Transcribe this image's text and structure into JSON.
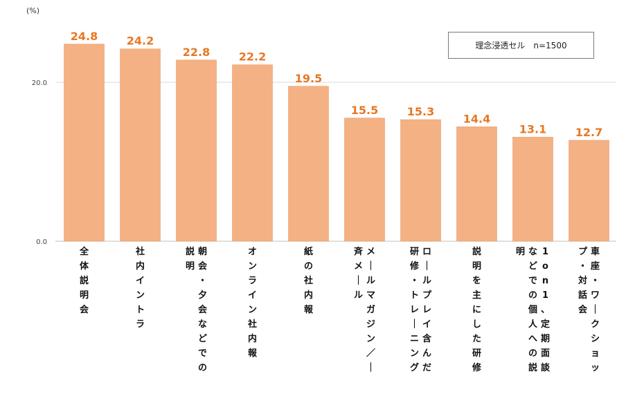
{
  "chart_data": {
    "type": "bar",
    "unit_label": "(%)",
    "legend": "理念浸透セル　n=1500",
    "ylim": [
      0,
      30
    ],
    "yticks": [
      "0.0",
      "20.0"
    ],
    "ytick_values": [
      0,
      20
    ],
    "categories": [
      "全体説明会",
      "社内イントラ",
      "朝会・夕会などでの説明",
      "オンライン社内報",
      "紙の社内報",
      "メールマガジン／一斉メール",
      "ロールプレイ含んだ研修・トレーニング",
      "説明を主にした研修",
      "1on1、定期面談などでの個人への説明",
      "車座・ワークショップ・対話会"
    ],
    "label_columns": [
      [
        "全体説明会"
      ],
      [
        "社内イントラ"
      ],
      [
        "朝会・夕会などでの",
        "説明"
      ],
      [
        "オンライン社内報"
      ],
      [
        "紙の社内報"
      ],
      [
        "メールマガジン／一",
        "斉メール"
      ],
      [
        "ロールプレイ含んだ",
        "研修・トレーニング"
      ],
      [
        "説明を主にした研修"
      ],
      [
        "1on1、定期面談",
        "などでの個人への説",
        "明"
      ],
      [
        "車座・ワークショッ",
        "プ・対話会"
      ]
    ],
    "values": [
      24.8,
      24.2,
      22.8,
      22.2,
      19.5,
      15.5,
      15.3,
      14.4,
      13.1,
      12.7
    ],
    "value_labels": [
      "24.8",
      "24.2",
      "22.8",
      "22.2",
      "19.5",
      "15.5",
      "15.3",
      "14.4",
      "13.1",
      "12.7"
    ],
    "bar_color": "#f4b183",
    "bar_edge_color": "#e7a06f",
    "label_color": "#e87722",
    "grid_color": "#d9d9d9",
    "axis_color": "#bfbfbf"
  }
}
